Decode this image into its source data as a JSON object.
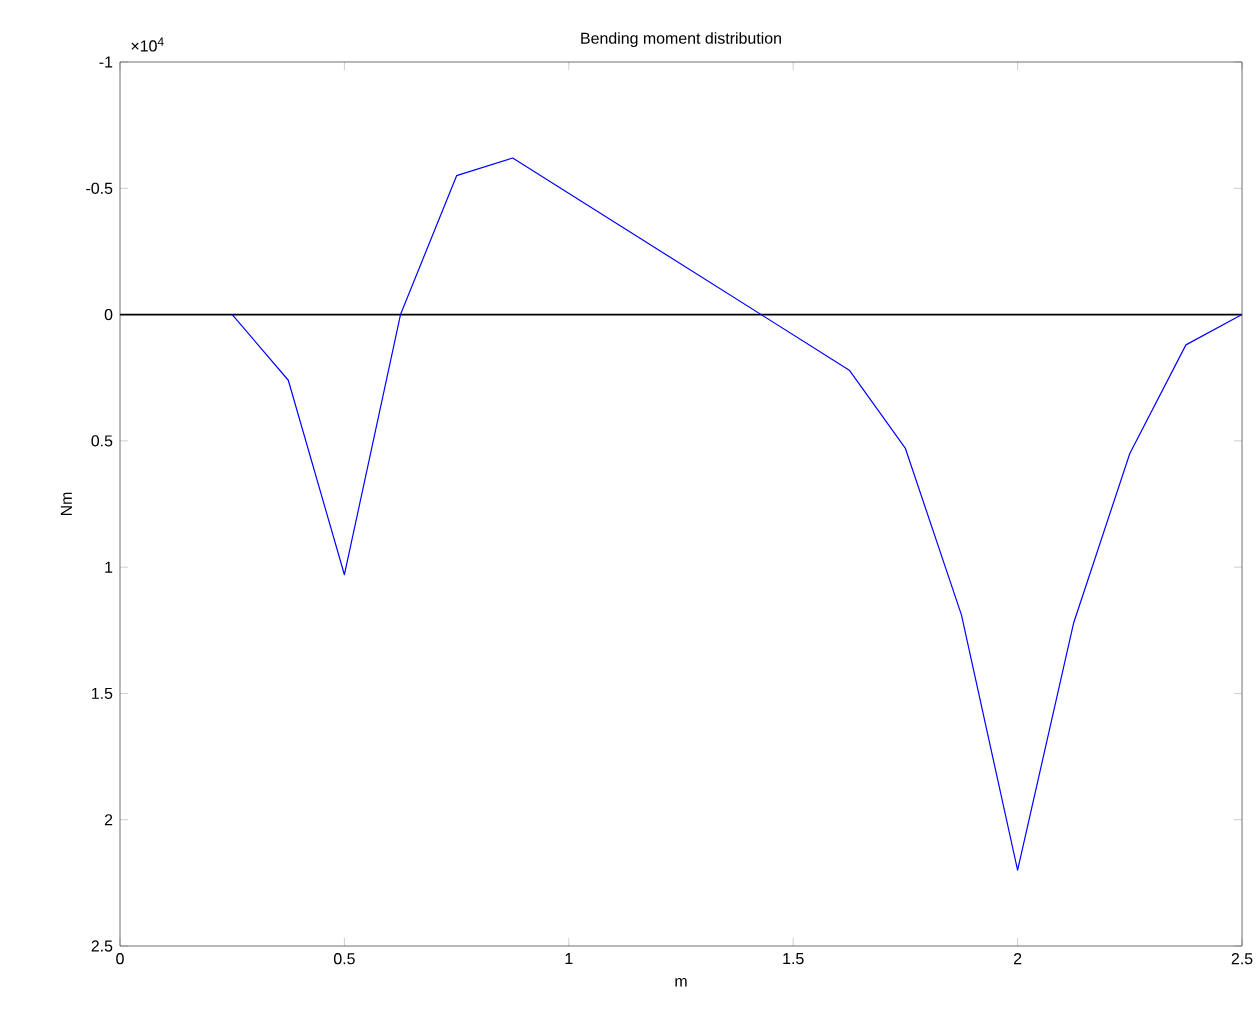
{
  "chart_data": {
    "type": "line",
    "title": "Bending moment distribution",
    "xlabel": "m",
    "ylabel": "Nm",
    "annotations": [
      "×10$^{4}$"
    ],
    "xlim": [
      0,
      2.5
    ],
    "xticks": [
      0,
      0.5,
      1,
      1.5,
      2,
      2.5
    ],
    "ylim": [
      2.5,
      -1
    ],
    "yticks": [
      -1,
      -0.5,
      0,
      0.5,
      1,
      1.5,
      2,
      2.5
    ],
    "ref_lines": [
      {
        "axis": "y",
        "value": 0,
        "color": "#000000"
      }
    ],
    "series": [
      {
        "color": "#0000ff",
        "x": [
          0.25,
          0.375,
          0.5,
          0.625,
          0.75,
          0.875,
          1.625,
          1.75,
          1.875,
          2.0,
          2.125,
          2.25,
          2.375,
          2.5
        ],
        "values": [
          0,
          0.26,
          1.03,
          0,
          -0.55,
          -0.62,
          0.22,
          0.53,
          1.19,
          2.2,
          1.22,
          0.55,
          0.12,
          0
        ]
      }
    ]
  }
}
